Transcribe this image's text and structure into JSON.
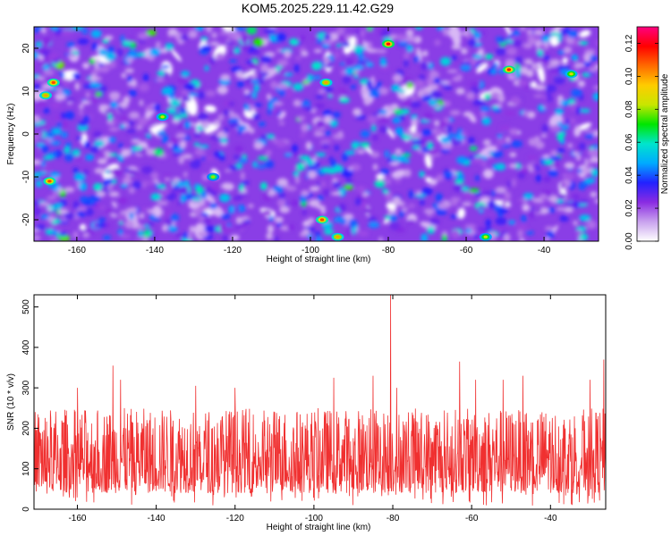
{
  "title": "KOM5.2025.229.11.42.G29",
  "colors": {
    "snr_line": "#f03030",
    "axis": "#000000",
    "colormap": [
      "#ffffff",
      "#c9a2ee",
      "#8a2be2",
      "#2222ff",
      "#00aaff",
      "#00e5cc",
      "#00e600",
      "#c8e600",
      "#ffcc00",
      "#ff6a00",
      "#ff0000",
      "#ff0080"
    ]
  },
  "chart_data": [
    {
      "type": "heatmap",
      "name": "spectrogram",
      "xlabel": "Height of straight line (km)",
      "ylabel": "Frequency (Hz)",
      "xlim": [
        -171,
        -26
      ],
      "ylim": [
        -25,
        25
      ],
      "x_ticks": [
        "-160",
        "-140",
        "-120",
        "-100",
        "-80",
        "-60",
        "-40"
      ],
      "x_tick_values": [
        -160,
        -140,
        -120,
        -100,
        -80,
        -60,
        -40
      ],
      "y_ticks": [
        "-20",
        "-10",
        "0",
        "10",
        "20"
      ],
      "y_tick_values": [
        -20,
        -10,
        0,
        10,
        20
      ],
      "colorbar": {
        "label": "Normalized spectral amplitude",
        "ticks": [
          "0.00",
          "0.02",
          "0.04",
          "0.06",
          "0.08",
          "0.10",
          "0.12"
        ],
        "tick_values": [
          0.0,
          0.02,
          0.04,
          0.06,
          0.08,
          0.1,
          0.12
        ],
        "range": [
          0.0,
          0.13
        ]
      },
      "peaks": [
        {
          "x": -80,
          "y": 21,
          "value": 0.12
        },
        {
          "x": -49,
          "y": 15,
          "value": 0.115
        },
        {
          "x": -166,
          "y": 12,
          "value": 0.11
        },
        {
          "x": -168,
          "y": 9,
          "value": 0.1
        },
        {
          "x": -96,
          "y": 12,
          "value": 0.1
        },
        {
          "x": -167,
          "y": -11,
          "value": 0.11
        },
        {
          "x": -97,
          "y": -20,
          "value": 0.11
        },
        {
          "x": -93,
          "y": -24,
          "value": 0.1
        },
        {
          "x": -33,
          "y": 14,
          "value": 0.09
        },
        {
          "x": -138,
          "y": 4,
          "value": 0.085
        },
        {
          "x": -125,
          "y": -10,
          "value": 0.08
        },
        {
          "x": -55,
          "y": -24,
          "value": 0.085
        }
      ],
      "background_level": [
        0.01,
        0.06
      ]
    },
    {
      "type": "line",
      "name": "snr",
      "xlabel": "Height of straight line (km)",
      "ylabel": "SNR (10 * v/v)",
      "xlim": [
        -171,
        -26
      ],
      "ylim": [
        0,
        530
      ],
      "x_ticks": [
        "-160",
        "-140",
        "-120",
        "-100",
        "-80",
        "-60",
        "-40"
      ],
      "x_tick_values": [
        -160,
        -140,
        -120,
        -100,
        -80,
        -60,
        -40
      ],
      "y_ticks": [
        "0",
        "100",
        "200",
        "300",
        "400",
        "500"
      ],
      "y_tick_values": [
        0,
        100,
        200,
        300,
        400,
        500
      ],
      "series": [
        {
          "name": "SNR",
          "x_range": [
            -171,
            -26
          ],
          "typical_range": [
            40,
            250
          ],
          "mean": 120,
          "peaks": [
            {
              "x": -171,
              "y": 290
            },
            {
              "x": -151,
              "y": 355
            },
            {
              "x": -149,
              "y": 320
            },
            {
              "x": -160,
              "y": 300
            },
            {
              "x": -130,
              "y": 305
            },
            {
              "x": -120,
              "y": 300
            },
            {
              "x": -95,
              "y": 325
            },
            {
              "x": -85,
              "y": 330
            },
            {
              "x": -80.6,
              "y": 530
            },
            {
              "x": -79,
              "y": 300
            },
            {
              "x": -63,
              "y": 365
            },
            {
              "x": -59,
              "y": 320
            },
            {
              "x": -52,
              "y": 320
            },
            {
              "x": -47,
              "y": 330
            },
            {
              "x": -30,
              "y": 320
            },
            {
              "x": -26.5,
              "y": 370
            }
          ]
        }
      ]
    }
  ]
}
